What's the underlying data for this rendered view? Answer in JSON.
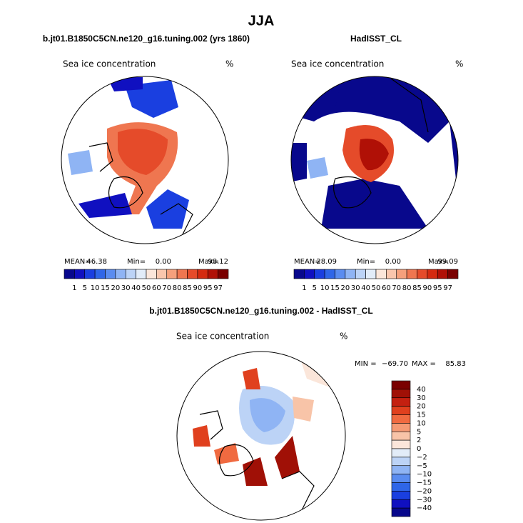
{
  "title": "JJA",
  "panels": [
    {
      "title": "b.jt01.B1850C5CN.ne120_g16.tuning.002 (yrs 1860)",
      "subtitle": "Sea ice concentration",
      "units": "%",
      "stats": [
        "MEAN=",
        "46.38",
        "Min=",
        "0.00",
        "Max=",
        "98.12"
      ],
      "colorbar": {
        "colors": [
          "#08088c",
          "#1010c0",
          "#1a3fe0",
          "#2f66e8",
          "#5a8cf0",
          "#8fb4f4",
          "#bcd3f6",
          "#e2ecf8",
          "#fbe6da",
          "#f9c6ad",
          "#f5a07c",
          "#ef7650",
          "#e54b2a",
          "#d42a10",
          "#b01006",
          "#7a0000"
        ],
        "labels": [
          "1",
          "5",
          "10",
          "15",
          "20",
          "30",
          "40",
          "50",
          "60",
          "70",
          "80",
          "85",
          "90",
          "95",
          "97"
        ]
      }
    },
    {
      "title": "HadISST_CL",
      "subtitle": "Sea ice concentration",
      "units": "%",
      "stats": [
        "MEAN=",
        "28.09",
        "Min=",
        "0.00",
        "Max=",
        "99.09"
      ],
      "colorbar": {
        "colors": [
          "#08088c",
          "#1010c0",
          "#1a3fe0",
          "#2f66e8",
          "#5a8cf0",
          "#8fb4f4",
          "#bcd3f6",
          "#e2ecf8",
          "#fbe6da",
          "#f9c6ad",
          "#f5a07c",
          "#ef7650",
          "#e54b2a",
          "#d42a10",
          "#b01006",
          "#7a0000"
        ],
        "labels": [
          "1",
          "5",
          "10",
          "15",
          "20",
          "30",
          "40",
          "50",
          "60",
          "70",
          "80",
          "85",
          "90",
          "95",
          "97"
        ]
      }
    },
    {
      "title": "b.jt01.B1850C5CN.ne120_g16.tuning.002 - HadISST_CL",
      "subtitle": "Sea ice concentration",
      "units": "%",
      "stats": [
        "MIN =",
        "−69.70",
        "MAX =",
        "85.83"
      ],
      "colorbar": {
        "colors": [
          "#7a0000",
          "#a01006",
          "#c42010",
          "#e0401e",
          "#f06a40",
          "#f59a74",
          "#f8c4a8",
          "#fbe6da",
          "#e2ecf8",
          "#bcd3f6",
          "#8fb4f4",
          "#5a8cf0",
          "#2f66e8",
          "#1a3fe0",
          "#1010c0",
          "#08088c"
        ],
        "labels": [
          "40",
          "30",
          "20",
          "15",
          "10",
          "5",
          "2",
          "0",
          "−2",
          "−5",
          "−10",
          "−15",
          "−20",
          "−30",
          "−40"
        ]
      }
    }
  ]
}
